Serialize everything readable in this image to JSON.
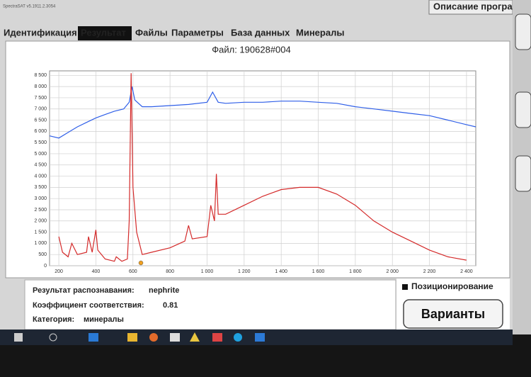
{
  "window": {
    "title": "SpectraSAT v5.1911.2.3054",
    "help_button": "Описание програ"
  },
  "tabs": [
    "Идентификация",
    "Результат",
    "Файлы",
    "Параметры",
    "База данных",
    "Минералы"
  ],
  "chart_data": {
    "type": "line",
    "title": "Файл: 190628#004",
    "xlim": [
      150,
      2450
    ],
    "ylim": [
      0,
      8700
    ],
    "grid": true,
    "xticks": [
      200,
      400,
      600,
      800,
      {
        "value": 1000,
        "label": "1 000"
      },
      {
        "value": 1200,
        "label": "1 200"
      },
      {
        "value": 1400,
        "label": "1 400"
      },
      {
        "value": 1600,
        "label": "1 600"
      },
      {
        "value": 1800,
        "label": "1 800"
      },
      {
        "value": 2000,
        "label": "2 000"
      },
      {
        "value": 2200,
        "label": "2 200"
      },
      {
        "value": 2400,
        "label": "2 400"
      }
    ],
    "yticks": [
      0,
      500,
      {
        "value": 1000,
        "label": "1 000"
      },
      {
        "value": 1500,
        "label": "1 500"
      },
      {
        "value": 2000,
        "label": "2 000"
      },
      {
        "value": 2500,
        "label": "2 500"
      },
      {
        "value": 3000,
        "label": "3 000"
      },
      {
        "value": 3500,
        "label": "3 500"
      },
      {
        "value": 4000,
        "label": "4 000"
      },
      {
        "value": 4500,
        "label": "4 500"
      },
      {
        "value": 5000,
        "label": "5 000"
      },
      {
        "value": 5500,
        "label": "5 500"
      },
      {
        "value": 6000,
        "label": "6 000"
      },
      {
        "value": 6500,
        "label": "6 500"
      },
      {
        "value": 7000,
        "label": "7 000"
      },
      {
        "value": 7500,
        "label": "7 500"
      },
      {
        "value": 8000,
        "label": "8 000"
      },
      {
        "value": 8500,
        "label": "8 500"
      }
    ],
    "series": [
      {
        "color": "#2f5fe8",
        "x": [
          150,
          200,
          250,
          300,
          350,
          400,
          450,
          500,
          550,
          580,
          595,
          610,
          650,
          700,
          800,
          900,
          1000,
          1030,
          1060,
          1100,
          1200,
          1300,
          1400,
          1500,
          1600,
          1700,
          1800,
          1900,
          2000,
          2100,
          2200,
          2300,
          2400,
          2450
        ],
        "values": [
          5800,
          5700,
          5950,
          6200,
          6400,
          6600,
          6750,
          6900,
          7000,
          7300,
          8000,
          7400,
          7100,
          7100,
          7150,
          7200,
          7300,
          7750,
          7300,
          7250,
          7300,
          7300,
          7350,
          7350,
          7300,
          7250,
          7100,
          7000,
          6900,
          6800,
          6700,
          6500,
          6300,
          6200
        ]
      },
      {
        "color": "#d42a2a",
        "x": [
          200,
          220,
          250,
          270,
          300,
          350,
          360,
          380,
          400,
          410,
          450,
          500,
          510,
          540,
          570,
          580,
          590,
          600,
          620,
          650,
          700,
          800,
          880,
          900,
          920,
          1000,
          1020,
          1040,
          1050,
          1060,
          1100,
          1200,
          1300,
          1400,
          1500,
          1600,
          1700,
          1800,
          1900,
          2000,
          2100,
          2200,
          2300,
          2400
        ],
        "values": [
          1300,
          600,
          400,
          1000,
          500,
          600,
          1300,
          600,
          1600,
          700,
          300,
          200,
          400,
          200,
          300,
          2000,
          8600,
          3500,
          1500,
          500,
          600,
          800,
          1100,
          1800,
          1200,
          1300,
          2700,
          2000,
          4100,
          2300,
          2300,
          2700,
          3100,
          3400,
          3500,
          3500,
          3200,
          2700,
          2000,
          1500,
          1100,
          700,
          400,
          250
        ]
      }
    ]
  },
  "result": {
    "recognition_label": "Результат распознавания:",
    "recognition_value": "nephrite",
    "coefficient_label": "Коэффициент соответствия:",
    "coefficient_value": "0.81",
    "category_label": "Категория:",
    "category_value": "минералы"
  },
  "positioning": "Позиционирование",
  "variants_button": "Варианты"
}
